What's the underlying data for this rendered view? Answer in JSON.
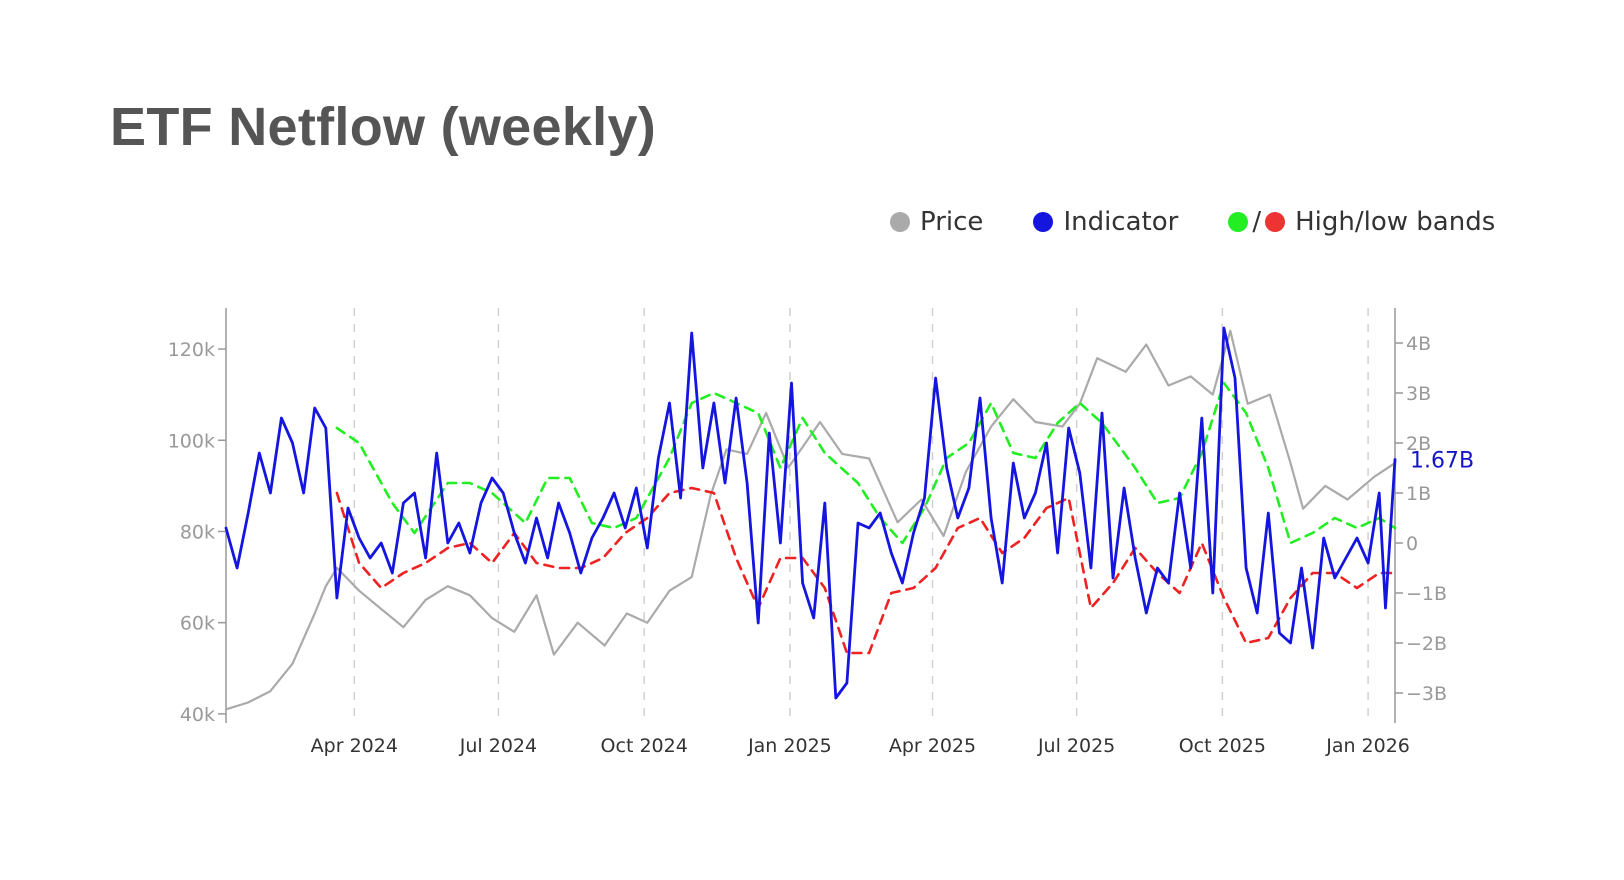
{
  "page": {
    "title": "ETF Netflow (weekly)"
  },
  "legend": {
    "price_label": "Price",
    "indicator_label": "Indicator",
    "bands_label": "High/low bands",
    "slash": "/"
  },
  "colors": {
    "price": "#aaaaaa",
    "indicator": "#1515e0",
    "high_band": "#22ee22",
    "low_band": "#ee2222",
    "axis": "#999999",
    "grid": "#d0d0d0",
    "last_value": "#1515c8",
    "tick_text": "#999999",
    "date_text": "#333333"
  },
  "chart_data": {
    "type": "line",
    "title": "ETF Netflow (weekly)",
    "x_axis": {
      "ticks": [
        "2024-04-01",
        "2024-07-01",
        "2024-10-01",
        "2025-01-01",
        "2025-04-01",
        "2025-07-01",
        "2025-10-01",
        "2026-01-01"
      ],
      "tick_labels": [
        "Apr 2024",
        "Jul 2024",
        "Oct 2024",
        "Jan 2025",
        "Apr 2025",
        "Jul 2025",
        "Oct 2025",
        "Jan 2026"
      ],
      "range": [
        "2024-01-11",
        "2026-01-18"
      ],
      "grid": "dashed vertical"
    },
    "y_left": {
      "range": [
        38000,
        129000
      ],
      "ticks": [
        40000,
        60000,
        80000,
        100000,
        120000
      ],
      "tick_labels": [
        "40k",
        "60k",
        "80k",
        "100k",
        "120k"
      ]
    },
    "y_right": {
      "range": [
        -3.6,
        4.7
      ],
      "ticks": [
        -3,
        -2,
        -1,
        0,
        1,
        2,
        3,
        4
      ],
      "tick_labels": [
        "−3B",
        "−2B",
        "−1B",
        "0",
        "1B",
        "2B",
        "3B",
        "4B"
      ]
    },
    "last_value_label": "1.67B",
    "series": [
      {
        "name": "Price",
        "axis": "left",
        "x": [
          "2024-01-11",
          "2024-01-25",
          "2024-02-08",
          "2024-02-22",
          "2024-03-07",
          "2024-03-14",
          "2024-03-21",
          "2024-04-04",
          "2024-04-18",
          "2024-05-02",
          "2024-05-16",
          "2024-05-30",
          "2024-06-13",
          "2024-06-27",
          "2024-07-11",
          "2024-07-25",
          "2024-08-05",
          "2024-08-20",
          "2024-09-06",
          "2024-09-20",
          "2024-10-03",
          "2024-10-17",
          "2024-10-31",
          "2024-11-12",
          "2024-11-22",
          "2024-12-05",
          "2024-12-17",
          "2024-12-31",
          "2025-01-20",
          "2025-02-03",
          "2025-02-20",
          "2025-03-10",
          "2025-03-25",
          "2025-04-08",
          "2025-04-22",
          "2025-05-08",
          "2025-05-22",
          "2025-06-05",
          "2025-06-22",
          "2025-07-03",
          "2025-07-14",
          "2025-08-01",
          "2025-08-14",
          "2025-08-28",
          "2025-09-11",
          "2025-09-25",
          "2025-10-06",
          "2025-10-17",
          "2025-10-31",
          "2025-11-13",
          "2025-11-21",
          "2025-12-05",
          "2025-12-19",
          "2026-01-05",
          "2026-01-18"
        ],
        "values": [
          41000,
          42500,
          45000,
          51000,
          62000,
          68000,
          72000,
          67000,
          63000,
          59000,
          65000,
          68000,
          66000,
          61000,
          58000,
          66000,
          53000,
          60000,
          55000,
          62000,
          60000,
          67000,
          70000,
          88000,
          98000,
          97000,
          106000,
          94000,
          104000,
          97000,
          96000,
          82000,
          87000,
          79000,
          93000,
          103000,
          109000,
          104000,
          103000,
          108000,
          118000,
          115000,
          121000,
          112000,
          114000,
          110000,
          124000,
          108000,
          110000,
          95000,
          85000,
          90000,
          87000,
          92000,
          95000
        ]
      },
      {
        "name": "Indicator",
        "axis": "right",
        "x": [
          "2024-01-11",
          "2024-01-18",
          "2024-01-25",
          "2024-02-01",
          "2024-02-08",
          "2024-02-15",
          "2024-02-22",
          "2024-02-29",
          "2024-03-07",
          "2024-03-14",
          "2024-03-21",
          "2024-03-28",
          "2024-04-04",
          "2024-04-11",
          "2024-04-18",
          "2024-04-25",
          "2024-05-02",
          "2024-05-09",
          "2024-05-16",
          "2024-05-23",
          "2024-05-30",
          "2024-06-06",
          "2024-06-13",
          "2024-06-20",
          "2024-06-27",
          "2024-07-04",
          "2024-07-11",
          "2024-07-18",
          "2024-07-25",
          "2024-08-01",
          "2024-08-08",
          "2024-08-15",
          "2024-08-22",
          "2024-08-29",
          "2024-09-05",
          "2024-09-12",
          "2024-09-19",
          "2024-09-26",
          "2024-10-03",
          "2024-10-10",
          "2024-10-17",
          "2024-10-24",
          "2024-10-31",
          "2024-11-07",
          "2024-11-14",
          "2024-11-21",
          "2024-11-28",
          "2024-12-05",
          "2024-12-12",
          "2024-12-19",
          "2024-12-26",
          "2025-01-02",
          "2025-01-09",
          "2025-01-16",
          "2025-01-23",
          "2025-01-30",
          "2025-02-06",
          "2025-02-13",
          "2025-02-20",
          "2025-02-27",
          "2025-03-06",
          "2025-03-13",
          "2025-03-20",
          "2025-03-27",
          "2025-04-03",
          "2025-04-10",
          "2025-04-17",
          "2025-04-24",
          "2025-05-01",
          "2025-05-08",
          "2025-05-15",
          "2025-05-22",
          "2025-05-29",
          "2025-06-05",
          "2025-06-12",
          "2025-06-19",
          "2025-06-26",
          "2025-07-03",
          "2025-07-10",
          "2025-07-17",
          "2025-07-24",
          "2025-07-31",
          "2025-08-07",
          "2025-08-14",
          "2025-08-21",
          "2025-08-28",
          "2025-09-04",
          "2025-09-11",
          "2025-09-18",
          "2025-09-25",
          "2025-10-02",
          "2025-10-09",
          "2025-10-16",
          "2025-10-23",
          "2025-10-30",
          "2025-11-06",
          "2025-11-13",
          "2025-11-20",
          "2025-11-27",
          "2025-12-04",
          "2025-12-11",
          "2025-12-18",
          "2025-12-25",
          "2026-01-01",
          "2026-01-08",
          "2026-01-12",
          "2026-01-18"
        ],
        "values": [
          0.3,
          -0.5,
          0.6,
          1.8,
          1.0,
          2.5,
          2.0,
          1.0,
          2.7,
          2.3,
          -1.1,
          0.7,
          0.1,
          -0.3,
          0.0,
          -0.6,
          0.8,
          1.0,
          -0.3,
          1.8,
          0.0,
          0.4,
          -0.2,
          0.8,
          1.3,
          1.0,
          0.2,
          -0.4,
          0.5,
          -0.3,
          0.8,
          0.2,
          -0.6,
          0.1,
          0.5,
          1.0,
          0.3,
          1.1,
          -0.1,
          1.7,
          2.8,
          0.9,
          4.2,
          1.5,
          2.8,
          1.2,
          2.9,
          1.2,
          -1.6,
          2.2,
          0.0,
          3.2,
          -0.8,
          -1.5,
          0.8,
          -3.1,
          -2.8,
          0.4,
          0.3,
          0.6,
          -0.2,
          -0.8,
          0.2,
          0.9,
          3.3,
          1.5,
          0.5,
          1.1,
          2.9,
          0.5,
          -0.8,
          1.6,
          0.5,
          1.0,
          2.0,
          -0.2,
          2.3,
          1.4,
          -0.5,
          2.6,
          -0.7,
          1.1,
          -0.3,
          -1.4,
          -0.5,
          -0.8,
          1.0,
          -0.5,
          2.5,
          -1.0,
          4.3,
          3.3,
          -0.5,
          -1.4,
          0.6,
          -1.8,
          -2.0,
          -0.5,
          -2.1,
          0.1,
          -0.7,
          -0.3,
          0.1,
          -0.4,
          1.0,
          -1.3,
          1.67
        ]
      },
      {
        "name": "High band",
        "axis": "right",
        "x": [
          "2024-03-21",
          "2024-04-04",
          "2024-04-25",
          "2024-05-09",
          "2024-05-30",
          "2024-06-13",
          "2024-06-27",
          "2024-07-18",
          "2024-08-01",
          "2024-08-15",
          "2024-08-29",
          "2024-09-12",
          "2024-09-26",
          "2024-10-17",
          "2024-10-31",
          "2024-11-14",
          "2024-11-28",
          "2024-12-12",
          "2024-12-26",
          "2025-01-09",
          "2025-01-23",
          "2025-02-13",
          "2025-02-27",
          "2025-03-13",
          "2025-03-27",
          "2025-04-10",
          "2025-04-24",
          "2025-05-08",
          "2025-05-22",
          "2025-06-05",
          "2025-06-19",
          "2025-07-03",
          "2025-07-17",
          "2025-08-07",
          "2025-08-21",
          "2025-09-04",
          "2025-09-18",
          "2025-10-02",
          "2025-10-16",
          "2025-10-30",
          "2025-11-13",
          "2025-11-27",
          "2025-12-11",
          "2025-12-25",
          "2026-01-08",
          "2026-01-18"
        ],
        "values": [
          2.3,
          2.0,
          0.8,
          0.2,
          1.2,
          1.2,
          1.0,
          0.4,
          1.3,
          1.3,
          0.4,
          0.3,
          0.5,
          1.7,
          2.8,
          3.0,
          2.8,
          2.6,
          1.5,
          2.5,
          1.8,
          1.2,
          0.5,
          0.0,
          0.7,
          1.7,
          2.0,
          2.8,
          1.8,
          1.7,
          2.4,
          2.8,
          2.4,
          1.5,
          0.8,
          0.9,
          1.8,
          3.2,
          2.6,
          1.5,
          0.0,
          0.2,
          0.5,
          0.3,
          0.5,
          0.3
        ]
      },
      {
        "name": "Low band",
        "axis": "right",
        "x": [
          "2024-03-21",
          "2024-04-04",
          "2024-04-18",
          "2024-05-02",
          "2024-05-16",
          "2024-05-30",
          "2024-06-13",
          "2024-06-27",
          "2024-07-11",
          "2024-07-25",
          "2024-08-08",
          "2024-08-22",
          "2024-09-05",
          "2024-09-19",
          "2024-10-03",
          "2024-10-17",
          "2024-10-31",
          "2024-11-14",
          "2024-11-28",
          "2024-12-12",
          "2024-12-26",
          "2025-01-09",
          "2025-01-23",
          "2025-02-06",
          "2025-02-20",
          "2025-03-06",
          "2025-03-20",
          "2025-04-03",
          "2025-04-17",
          "2025-05-01",
          "2025-05-15",
          "2025-05-29",
          "2025-06-12",
          "2025-06-26",
          "2025-07-10",
          "2025-07-24",
          "2025-08-07",
          "2025-08-21",
          "2025-09-04",
          "2025-09-18",
          "2025-10-02",
          "2025-10-16",
          "2025-10-30",
          "2025-11-13",
          "2025-11-27",
          "2025-12-11",
          "2025-12-25",
          "2026-01-08",
          "2026-01-18"
        ],
        "values": [
          1.0,
          -0.4,
          -0.9,
          -0.6,
          -0.4,
          -0.1,
          0.0,
          -0.4,
          0.2,
          -0.4,
          -0.5,
          -0.5,
          -0.3,
          0.2,
          0.5,
          1.0,
          1.1,
          1.0,
          -0.3,
          -1.3,
          -0.3,
          -0.3,
          -0.9,
          -2.2,
          -2.2,
          -1.0,
          -0.9,
          -0.5,
          0.3,
          0.5,
          -0.2,
          0.1,
          0.7,
          0.9,
          -1.3,
          -0.8,
          -0.1,
          -0.6,
          -1.0,
          0.0,
          -1.1,
          -2.0,
          -1.9,
          -1.1,
          -0.6,
          -0.6,
          -0.9,
          -0.6,
          -0.6
        ]
      }
    ],
    "band_styles": "dashed"
  }
}
